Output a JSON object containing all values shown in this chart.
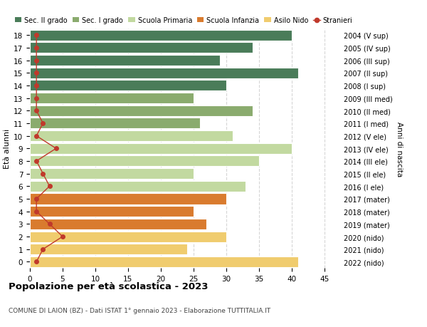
{
  "ages": [
    18,
    17,
    16,
    15,
    14,
    13,
    12,
    11,
    10,
    9,
    8,
    7,
    6,
    5,
    4,
    3,
    2,
    1,
    0
  ],
  "bar_values": [
    40,
    34,
    29,
    41,
    30,
    25,
    34,
    26,
    31,
    40,
    35,
    25,
    33,
    30,
    25,
    27,
    30,
    24,
    41
  ],
  "bar_colors": [
    "#4a7c59",
    "#4a7c59",
    "#4a7c59",
    "#4a7c59",
    "#4a7c59",
    "#8aab6e",
    "#8aab6e",
    "#8aab6e",
    "#c2d9a0",
    "#c2d9a0",
    "#c2d9a0",
    "#c2d9a0",
    "#c2d9a0",
    "#d97b2e",
    "#d97b2e",
    "#d97b2e",
    "#f0cc6e",
    "#f0cc6e",
    "#f0cc6e"
  ],
  "right_labels": [
    "2004 (V sup)",
    "2005 (IV sup)",
    "2006 (III sup)",
    "2007 (II sup)",
    "2008 (I sup)",
    "2009 (III med)",
    "2010 (II med)",
    "2011 (I med)",
    "2012 (V ele)",
    "2013 (IV ele)",
    "2014 (III ele)",
    "2015 (II ele)",
    "2016 (I ele)",
    "2017 (mater)",
    "2018 (mater)",
    "2019 (mater)",
    "2020 (nido)",
    "2021 (nido)",
    "2022 (nido)"
  ],
  "stranieri_values": [
    1,
    1,
    1,
    1,
    1,
    1,
    1,
    2,
    1,
    4,
    1,
    2,
    3,
    1,
    1,
    3,
    5,
    2,
    1
  ],
  "legend_labels": [
    "Sec. II grado",
    "Sec. I grado",
    "Scuola Primaria",
    "Scuola Infanzia",
    "Asilo Nido",
    "Stranieri"
  ],
  "legend_colors": [
    "#4a7c59",
    "#8aab6e",
    "#c2d9a0",
    "#d97b2e",
    "#f0cc6e",
    "#c0392b"
  ],
  "title": "Popolazione per età scolastica - 2023",
  "subtitle": "COMUNE DI LAION (BZ) - Dati ISTAT 1° gennaio 2023 - Elaborazione TUTTITALIA.IT",
  "ylabel": "Età alunni",
  "right_ylabel": "Anni di nascita",
  "xlim": [
    0,
    47
  ],
  "background_color": "#ffffff"
}
